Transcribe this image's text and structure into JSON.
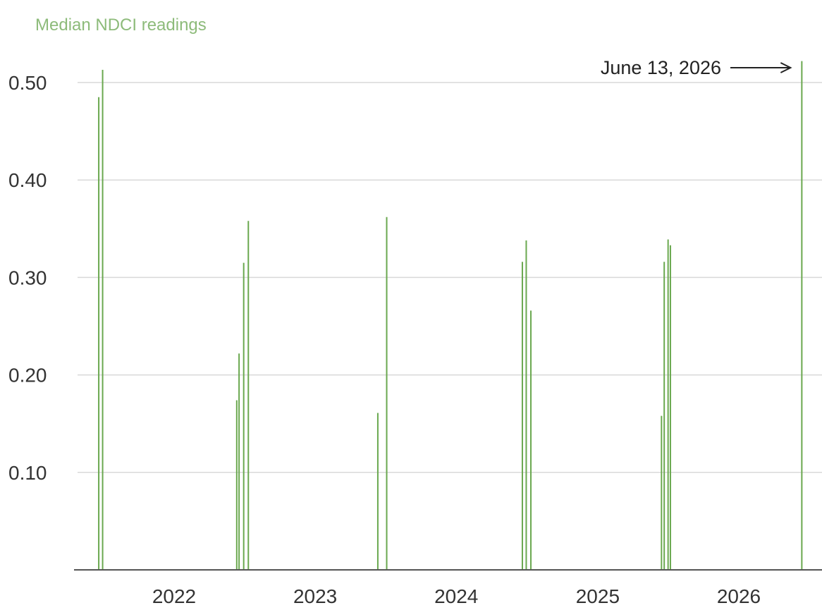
{
  "header": {
    "title": "",
    "subtitle": "Median NDCI readings"
  },
  "colors": {
    "bar": "#6aa84f",
    "grid": "#d9d9d9",
    "axis": "#555555",
    "text": "#333333",
    "subtitle": "#8dbb7a"
  },
  "chart_data": {
    "type": "bar",
    "title": "",
    "subtitle": "Median NDCI readings",
    "xlabel": "",
    "ylabel": "",
    "ylim": [
      0,
      0.53
    ],
    "xlim": [
      "2021-06-01",
      "2026-07-01"
    ],
    "grid": true,
    "y_ticks": [
      0.1,
      0.2,
      0.3,
      0.4,
      0.5
    ],
    "y_tick_labels": [
      "0.10",
      "0.20",
      "0.30",
      "0.40",
      "0.50"
    ],
    "x_ticks": [
      "2022-01-01",
      "2023-01-01",
      "2024-01-01",
      "2025-01-01",
      "2026-01-01"
    ],
    "x_tick_labels": [
      "2022",
      "2023",
      "2024",
      "2025",
      "2026"
    ],
    "points": [
      {
        "date": "2021-06-20",
        "value": 0.485
      },
      {
        "date": "2021-06-30",
        "value": 0.513
      },
      {
        "date": "2022-06-12",
        "value": 0.174
      },
      {
        "date": "2022-06-18",
        "value": 0.222
      },
      {
        "date": "2022-06-30",
        "value": 0.315
      },
      {
        "date": "2022-07-12",
        "value": 0.358
      },
      {
        "date": "2023-06-12",
        "value": 0.161
      },
      {
        "date": "2023-07-05",
        "value": 0.362
      },
      {
        "date": "2024-06-20",
        "value": 0.316
      },
      {
        "date": "2024-06-30",
        "value": 0.338
      },
      {
        "date": "2024-07-12",
        "value": 0.266
      },
      {
        "date": "2025-06-15",
        "value": 0.158
      },
      {
        "date": "2025-06-22",
        "value": 0.316
      },
      {
        "date": "2025-07-02",
        "value": 0.339
      },
      {
        "date": "2025-07-08",
        "value": 0.333
      },
      {
        "date": "2026-06-13",
        "value": 0.522
      }
    ],
    "annotations": [
      {
        "text": "June 13, 2026",
        "date": "2026-06-13"
      }
    ]
  }
}
